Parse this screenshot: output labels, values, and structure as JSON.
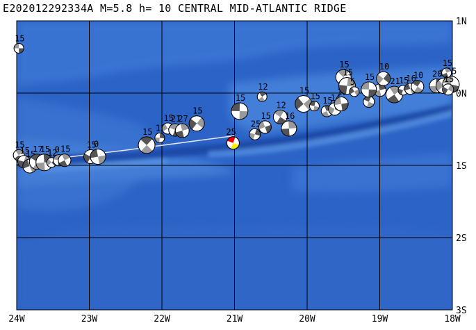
{
  "header": {
    "event_id": "E202012292334A",
    "magnitude": "M=5.8",
    "depth": "h= 10",
    "region": "CENTRAL MID-ATLANTIC RIDGE"
  },
  "map": {
    "lon_range": [
      -24,
      -18
    ],
    "lat_range": [
      -3,
      1
    ],
    "lon_labels": [
      "24W",
      "23W",
      "22W",
      "21W",
      "20W",
      "19W",
      "18W"
    ],
    "lat_labels": [
      "1N",
      "0N",
      "1S",
      "2S",
      "3S"
    ],
    "colors": {
      "ocean": "#2c63c6",
      "ocean_light": "#4a82da",
      "ocean_deep": "#1d4fae",
      "grid": "#000000",
      "track": "#e6e6e6"
    },
    "main_event": {
      "lon": -21.02,
      "lat": -0.69,
      "depth_label": "25"
    },
    "track_line": [
      [
        -24.0,
        -0.97
      ],
      [
        -22.5,
        -0.79
      ],
      [
        -21.0,
        -0.59
      ]
    ],
    "mechanisms": [
      {
        "lon": -23.97,
        "lat": 0.62,
        "label": "15"
      },
      {
        "lon": -23.97,
        "lat": -0.86,
        "label": "15"
      },
      {
        "lon": -23.9,
        "lat": -0.95,
        "label": "15"
      },
      {
        "lon": -23.82,
        "lat": -1.01,
        "label": "15"
      },
      {
        "lon": -23.72,
        "lat": -0.95,
        "label": "17"
      },
      {
        "lon": -23.62,
        "lat": -0.96,
        "label": "15"
      },
      {
        "lon": -23.52,
        "lat": -0.96,
        "label": "12"
      },
      {
        "lon": -23.42,
        "lat": -0.93,
        "label": "0"
      },
      {
        "lon": -23.34,
        "lat": -0.93,
        "label": "15"
      },
      {
        "lon": -22.98,
        "lat": -0.88,
        "label": "15"
      },
      {
        "lon": -22.88,
        "lat": -0.88,
        "label": "0"
      },
      {
        "lon": -22.21,
        "lat": -0.72,
        "label": "15"
      },
      {
        "lon": -22.03,
        "lat": -0.62,
        "label": "15"
      },
      {
        "lon": -21.92,
        "lat": -0.49,
        "label": "15"
      },
      {
        "lon": -21.82,
        "lat": -0.51,
        "label": "21"
      },
      {
        "lon": -21.72,
        "lat": -0.52,
        "label": "27"
      },
      {
        "lon": -21.52,
        "lat": -0.42,
        "label": "15"
      },
      {
        "lon": -20.93,
        "lat": -0.25,
        "label": "15"
      },
      {
        "lon": -20.62,
        "lat": -0.05,
        "label": "12"
      },
      {
        "lon": -20.72,
        "lat": -0.57,
        "label": "25"
      },
      {
        "lon": -20.58,
        "lat": -0.47,
        "label": "15"
      },
      {
        "lon": -20.37,
        "lat": -0.33,
        "label": "12"
      },
      {
        "lon": -20.25,
        "lat": -0.49,
        "label": "16"
      },
      {
        "lon": -20.05,
        "lat": -0.15,
        "label": "15"
      },
      {
        "lon": -19.9,
        "lat": -0.18,
        "label": "15"
      },
      {
        "lon": -19.73,
        "lat": -0.25,
        "label": "15"
      },
      {
        "lon": -19.62,
        "lat": -0.22,
        "label": "14"
      },
      {
        "lon": -19.53,
        "lat": -0.15,
        "label": "15"
      },
      {
        "lon": -19.5,
        "lat": 0.22,
        "label": "15"
      },
      {
        "lon": -19.45,
        "lat": 0.1,
        "label": "15"
      },
      {
        "lon": -19.35,
        "lat": 0.02,
        "label": "5"
      },
      {
        "lon": -19.15,
        "lat": -0.12,
        "label": "15"
      },
      {
        "lon": -19.0,
        "lat": 0.04,
        "label": "14"
      },
      {
        "lon": -18.95,
        "lat": 0.2,
        "label": "10"
      },
      {
        "lon": -19.15,
        "lat": 0.05,
        "label": "15"
      },
      {
        "lon": -18.8,
        "lat": -0.02,
        "label": "21"
      },
      {
        "lon": -18.68,
        "lat": 0.04,
        "label": "15"
      },
      {
        "lon": -18.58,
        "lat": 0.06,
        "label": "16"
      },
      {
        "lon": -18.48,
        "lat": 0.09,
        "label": "10"
      },
      {
        "lon": -18.22,
        "lat": 0.1,
        "label": "20"
      },
      {
        "lon": -18.12,
        "lat": 0.1,
        "label": "20"
      },
      {
        "lon": -18.02,
        "lat": 0.12,
        "label": "15"
      },
      {
        "lon": -18.08,
        "lat": 0.28,
        "label": "15"
      },
      {
        "lon": -18.06,
        "lat": 0.05,
        "label": "15"
      }
    ]
  }
}
